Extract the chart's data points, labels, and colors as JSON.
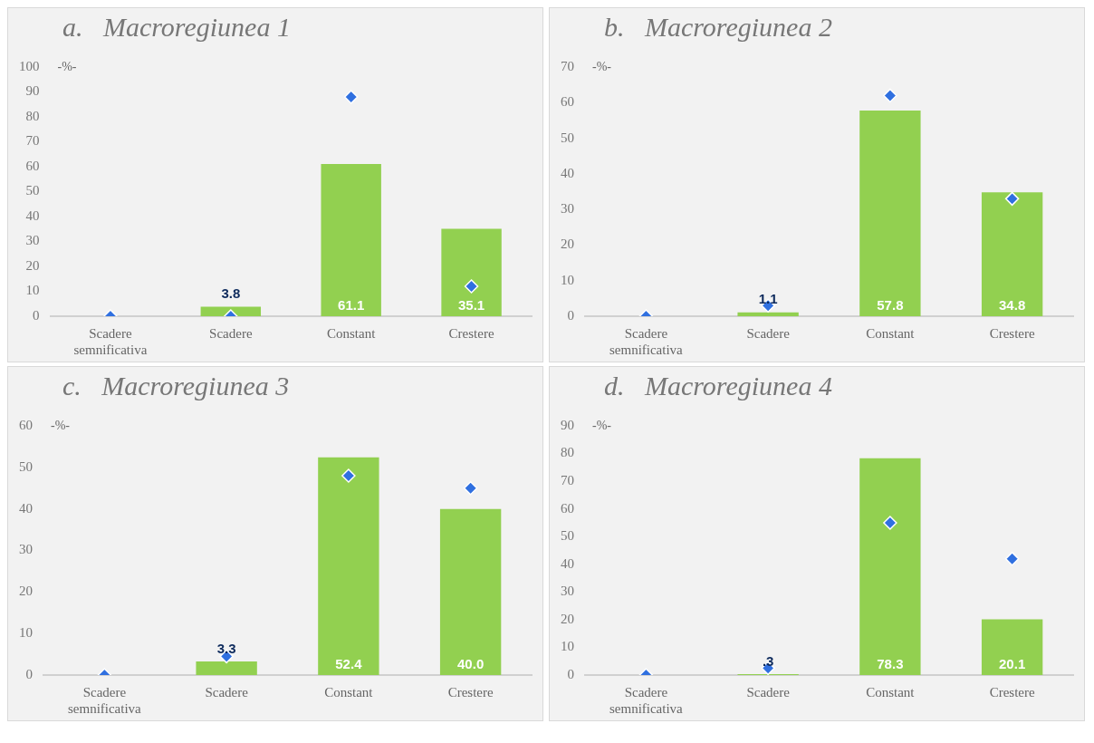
{
  "chart_data": [
    {
      "type": "bar",
      "title": "a.   Macroregiunea 1",
      "ylabel": "-%-",
      "categories": [
        "Scadere semnificativa",
        "Scadere",
        "Constant",
        "Crestere"
      ],
      "ylim": [
        0,
        100
      ],
      "yticks": [
        0,
        10,
        20,
        30,
        40,
        50,
        60,
        70,
        80,
        90,
        100
      ],
      "marker": "diamond",
      "series": [
        {
          "color": "#92d050",
          "values": [
            0,
            3.8,
            61.1,
            35.1
          ],
          "value_labels": [
            null,
            "3.8",
            "61.1",
            "35.1"
          ]
        },
        {
          "type": "scatter",
          "color": "#3070e0",
          "x": [
            "Scadere semnificativa",
            "Scadere",
            "Constant",
            "Crestere"
          ],
          "values": [
            0,
            0,
            88,
            12
          ]
        }
      ]
    },
    {
      "type": "bar",
      "title": "b.   Macroregiunea 2",
      "ylabel": "-%-",
      "categories": [
        "Scadere semnificativa",
        "Scadere",
        "Constant",
        "Crestere"
      ],
      "ylim": [
        0,
        70
      ],
      "yticks": [
        0,
        10,
        20,
        30,
        40,
        50,
        60,
        70
      ],
      "marker": "diamond",
      "series": [
        {
          "color": "#92d050",
          "values": [
            0,
            1.1,
            57.8,
            34.8
          ],
          "value_labels": [
            null,
            "1.1",
            "57.8",
            "34.8"
          ]
        },
        {
          "type": "scatter",
          "color": "#3070e0",
          "x": [
            "Scadere semnificativa",
            "Scadere",
            "Constant",
            "Crestere"
          ],
          "values": [
            0,
            3,
            62,
            33
          ]
        }
      ]
    },
    {
      "type": "bar",
      "title": "c.   Macroregiunea 3",
      "ylabel": "-%-",
      "categories": [
        "Scadere semnificativa",
        "Scadere",
        "Constant",
        "Crestere"
      ],
      "ylim": [
        0,
        60
      ],
      "yticks": [
        0,
        10,
        20,
        30,
        40,
        50,
        60
      ],
      "marker": "diamond",
      "series": [
        {
          "color": "#92d050",
          "values": [
            0,
            3.3,
            52.4,
            40.0
          ],
          "value_labels": [
            null,
            "3.3",
            "52.4",
            "40.0"
          ]
        },
        {
          "type": "scatter",
          "color": "#3070e0",
          "x": [
            "Scadere semnificativa",
            "Scadere",
            "Constant",
            "Crestere"
          ],
          "values": [
            0,
            4.5,
            48,
            45
          ]
        }
      ]
    },
    {
      "type": "bar",
      "title": "d.   Macroregiunea 4",
      "ylabel": "-%-",
      "categories": [
        "Scadere semnificativa",
        "Scadere",
        "Constant",
        "Crestere"
      ],
      "ylim": [
        0,
        90
      ],
      "yticks": [
        0,
        10,
        20,
        30,
        40,
        50,
        60,
        70,
        80,
        90
      ],
      "marker": "diamond",
      "series": [
        {
          "color": "#92d050",
          "values": [
            0,
            0.3,
            78.3,
            20.1
          ],
          "value_labels": [
            null,
            ".3",
            "78.3",
            "20.1"
          ]
        },
        {
          "type": "scatter",
          "color": "#3070e0",
          "x": [
            "Scadere semnificativa",
            "Scadere",
            "Constant",
            "Crestere"
          ],
          "values": [
            0,
            2.5,
            55,
            42
          ]
        }
      ]
    }
  ]
}
